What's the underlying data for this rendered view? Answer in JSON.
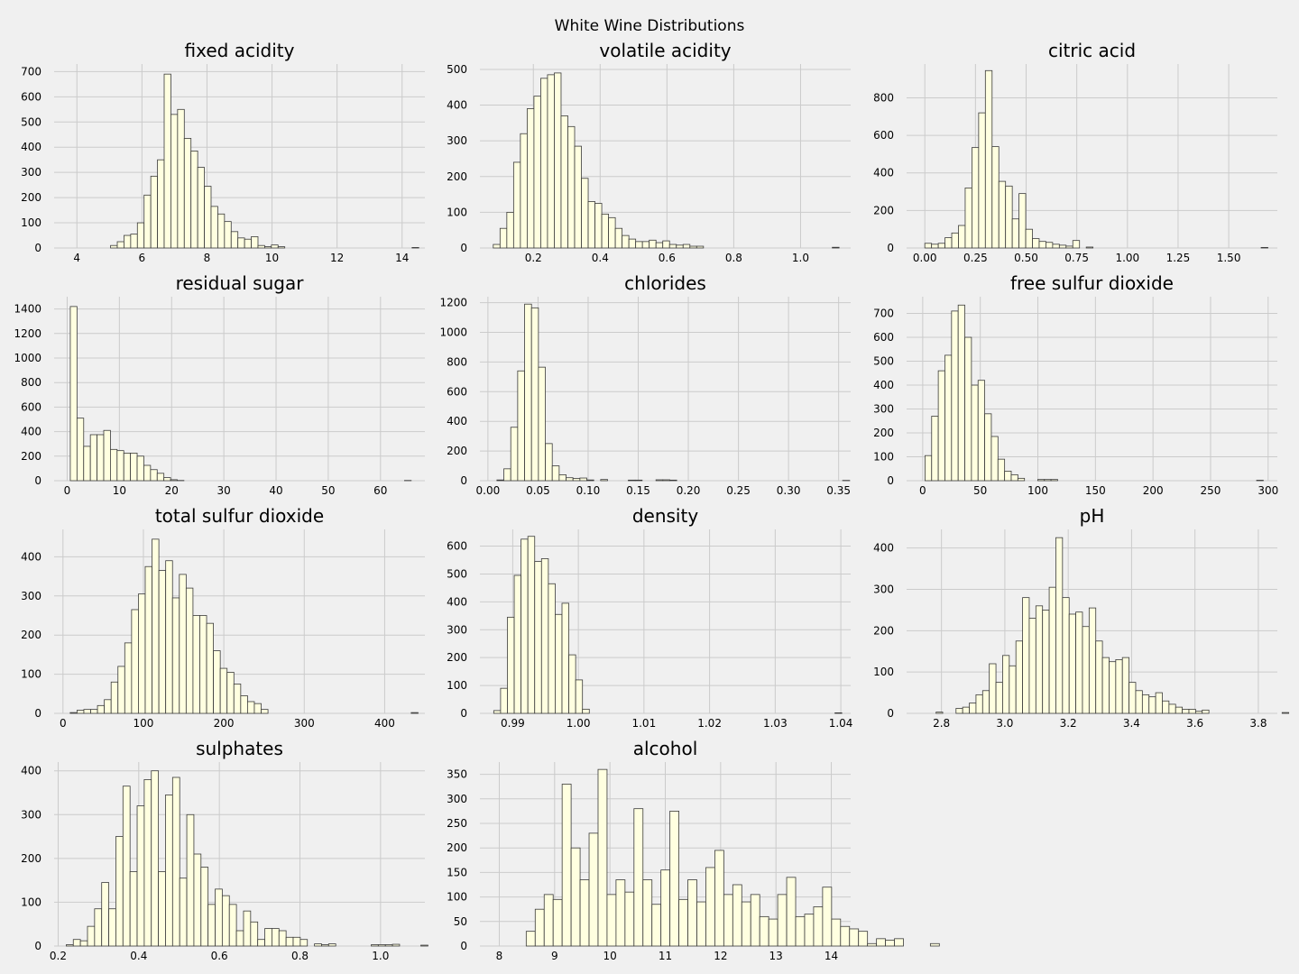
{
  "suptitle": "White Wine Distributions",
  "colors": {
    "background": "#f0f0f0",
    "bar_fill": "#ffffe0",
    "bar_edge": "#3a3a3a",
    "grid": "#cbcbcb"
  },
  "chart_data": [
    {
      "type": "bar",
      "title": "fixed acidity",
      "grid": true,
      "xlim": [
        3.3,
        14.7
      ],
      "ylim": [
        0,
        730
      ],
      "xticks": [
        4,
        6,
        8,
        10,
        12,
        14
      ],
      "xtick_labels": [
        "4",
        "6",
        "8",
        "10",
        "12",
        "14"
      ],
      "yticks": [
        0,
        100,
        200,
        300,
        400,
        500,
        600,
        700
      ],
      "ytick_labels": [
        "0",
        "100",
        "200",
        "300",
        "400",
        "500",
        "600",
        "700"
      ],
      "bin_start": 3.8,
      "bin_width": 0.206,
      "values": [
        0,
        0,
        0,
        0,
        0,
        0,
        10,
        25,
        50,
        55,
        100,
        210,
        285,
        350,
        690,
        530,
        550,
        435,
        385,
        320,
        245,
        165,
        135,
        105,
        65,
        40,
        35,
        45,
        10,
        5,
        12,
        5,
        0,
        0,
        0,
        0,
        0,
        0,
        0,
        0,
        0,
        0,
        0,
        0,
        0,
        0,
        0,
        0,
        0,
        0,
        0,
        2
      ]
    },
    {
      "type": "bar",
      "title": "volatile acidity",
      "grid": true,
      "xlim": [
        0.04,
        1.15
      ],
      "ylim": [
        0,
        515
      ],
      "xticks": [
        0.2,
        0.4,
        0.6,
        0.8,
        1.0
      ],
      "xtick_labels": [
        "0.2",
        "0.4",
        "0.6",
        "0.8",
        "1.0"
      ],
      "yticks": [
        0,
        100,
        200,
        300,
        400,
        500
      ],
      "ytick_labels": [
        "0",
        "100",
        "200",
        "300",
        "400",
        "500"
      ],
      "bin_start": 0.08,
      "bin_width": 0.0203,
      "values": [
        10,
        55,
        100,
        240,
        320,
        390,
        425,
        475,
        485,
        490,
        370,
        340,
        285,
        195,
        130,
        125,
        95,
        85,
        55,
        35,
        25,
        18,
        18,
        22,
        15,
        20,
        10,
        8,
        10,
        5,
        5,
        0,
        0,
        0,
        0,
        0,
        0,
        0,
        0,
        0,
        0,
        0,
        0,
        0,
        0,
        0,
        0,
        0,
        0,
        0,
        2
      ]
    },
    {
      "type": "bar",
      "title": "citric acid",
      "grid": true,
      "xlim": [
        -0.09,
        1.74
      ],
      "ylim": [
        0,
        980
      ],
      "xticks": [
        0.0,
        0.25,
        0.5,
        0.75,
        1.0,
        1.25,
        1.5
      ],
      "xtick_labels": [
        "0.00",
        "0.25",
        "0.50",
        "0.75",
        "1.00",
        "1.25",
        "1.50"
      ],
      "yticks": [
        0,
        200,
        400,
        600,
        800
      ],
      "ytick_labels": [
        "0",
        "200",
        "400",
        "600",
        "800"
      ],
      "bin_start": 0.0,
      "bin_width": 0.0332,
      "values": [
        25,
        20,
        25,
        55,
        80,
        120,
        320,
        535,
        720,
        945,
        540,
        355,
        330,
        155,
        290,
        100,
        50,
        35,
        30,
        20,
        15,
        10,
        40,
        0,
        5,
        0,
        0,
        0,
        0,
        0,
        0,
        0,
        0,
        0,
        0,
        0,
        0,
        0,
        0,
        0,
        0,
        0,
        0,
        0,
        0,
        0,
        0,
        0,
        0,
        0,
        3
      ]
    },
    {
      "type": "bar",
      "title": "residual sugar",
      "grid": true,
      "xlim": [
        -2.5,
        68.5
      ],
      "ylim": [
        0,
        1500
      ],
      "xticks": [
        0,
        10,
        20,
        30,
        40,
        50,
        60
      ],
      "xtick_labels": [
        "0",
        "10",
        "20",
        "30",
        "40",
        "50",
        "60"
      ],
      "yticks": [
        0,
        200,
        400,
        600,
        800,
        1000,
        1200,
        1400
      ],
      "ytick_labels": [
        "0",
        "200",
        "400",
        "600",
        "800",
        "1000",
        "1200",
        "1400"
      ],
      "bin_start": 0.6,
      "bin_width": 1.28,
      "values": [
        1420,
        510,
        280,
        375,
        375,
        410,
        255,
        245,
        225,
        225,
        200,
        125,
        90,
        60,
        25,
        8,
        2,
        0,
        0,
        0,
        0,
        0,
        0,
        0,
        0,
        0,
        0,
        0,
        0,
        0,
        0,
        0,
        0,
        0,
        0,
        0,
        0,
        0,
        0,
        0,
        0,
        0,
        0,
        0,
        0,
        0,
        0,
        0,
        0,
        0,
        2
      ]
    },
    {
      "type": "bar",
      "title": "chlorides",
      "grid": true,
      "xlim": [
        -0.008,
        0.362
      ],
      "ylim": [
        0,
        1240
      ],
      "xticks": [
        0.0,
        0.05,
        0.1,
        0.15,
        0.2,
        0.25,
        0.3,
        0.35
      ],
      "xtick_labels": [
        "0.00",
        "0.05",
        "0.10",
        "0.15",
        "0.20",
        "0.25",
        "0.30",
        "0.35"
      ],
      "yticks": [
        0,
        200,
        400,
        600,
        800,
        1000,
        1200
      ],
      "ytick_labels": [
        "0",
        "200",
        "400",
        "600",
        "800",
        "1000",
        "1200"
      ],
      "bin_start": 0.009,
      "bin_width": 0.0069,
      "values": [
        5,
        80,
        360,
        740,
        1190,
        1165,
        765,
        250,
        100,
        40,
        20,
        15,
        18,
        5,
        0,
        8,
        0,
        0,
        0,
        4,
        4,
        0,
        0,
        6,
        6,
        4,
        0,
        0,
        0,
        0,
        0,
        0,
        0,
        0,
        0,
        0,
        0,
        0,
        0,
        0,
        0,
        0,
        0,
        0,
        0,
        0,
        0,
        0,
        0,
        0,
        2
      ]
    },
    {
      "type": "bar",
      "title": "free sulfur dioxide",
      "grid": true,
      "xlim": [
        -14,
        308
      ],
      "ylim": [
        0,
        770
      ],
      "xticks": [
        0,
        50,
        100,
        150,
        200,
        250,
        300
      ],
      "xtick_labels": [
        "0",
        "50",
        "100",
        "150",
        "200",
        "250",
        "300"
      ],
      "yticks": [
        0,
        100,
        200,
        300,
        400,
        500,
        600,
        700
      ],
      "ytick_labels": [
        "0",
        "100",
        "200",
        "300",
        "400",
        "500",
        "600",
        "700"
      ],
      "bin_start": 2.0,
      "bin_width": 5.76,
      "values": [
        105,
        270,
        460,
        525,
        710,
        735,
        600,
        400,
        420,
        280,
        185,
        90,
        40,
        25,
        10,
        0,
        0,
        5,
        5,
        5,
        0,
        0,
        0,
        0,
        0,
        0,
        0,
        0,
        0,
        0,
        0,
        0,
        0,
        0,
        0,
        0,
        0,
        0,
        0,
        0,
        0,
        0,
        0,
        0,
        0,
        0,
        0,
        0,
        0,
        0,
        2
      ]
    },
    {
      "type": "bar",
      "title": "total sulfur dioxide",
      "grid": true,
      "xlim": [
        -11,
        450
      ],
      "ylim": [
        0,
        470
      ],
      "xticks": [
        0,
        100,
        200,
        300,
        400
      ],
      "xtick_labels": [
        "0",
        "100",
        "200",
        "300",
        "400"
      ],
      "yticks": [
        0,
        100,
        200,
        300,
        400
      ],
      "ytick_labels": [
        "0",
        "100",
        "200",
        "300",
        "400"
      ],
      "bin_start": 9.0,
      "bin_width": 8.48,
      "values": [
        2,
        8,
        10,
        10,
        20,
        35,
        80,
        120,
        180,
        265,
        305,
        375,
        445,
        365,
        390,
        295,
        355,
        320,
        250,
        250,
        230,
        160,
        115,
        105,
        75,
        45,
        30,
        25,
        10,
        0,
        0,
        0,
        0,
        0,
        0,
        0,
        0,
        0,
        0,
        0,
        0,
        0,
        0,
        0,
        0,
        0,
        0,
        0,
        0,
        0,
        2
      ]
    },
    {
      "type": "bar",
      "title": "density",
      "grid": true,
      "xlim": [
        0.985,
        1.0415
      ],
      "ylim": [
        0,
        660
      ],
      "xticks": [
        0.99,
        1.0,
        1.01,
        1.02,
        1.03,
        1.04
      ],
      "xtick_labels": [
        "0.99",
        "1.00",
        "1.01",
        "1.02",
        "1.03",
        "1.04"
      ],
      "yticks": [
        0,
        100,
        200,
        300,
        400,
        500,
        600
      ],
      "ytick_labels": [
        "0",
        "100",
        "200",
        "300",
        "400",
        "500",
        "600"
      ],
      "bin_start": 0.98711,
      "bin_width": 0.00104,
      "values": [
        10,
        90,
        345,
        495,
        625,
        635,
        545,
        555,
        465,
        355,
        395,
        210,
        120,
        15,
        0,
        0,
        0,
        0,
        0,
        0,
        0,
        0,
        0,
        0,
        0,
        0,
        0,
        0,
        0,
        0,
        0,
        0,
        0,
        0,
        0,
        0,
        0,
        0,
        0,
        0,
        0,
        0,
        0,
        0,
        0,
        0,
        0,
        0,
        0,
        0,
        2
      ]
    },
    {
      "type": "bar",
      "title": "pH",
      "grid": true,
      "xlim": [
        2.69,
        3.86
      ],
      "ylim": [
        0,
        445
      ],
      "xticks": [
        2.8,
        3.0,
        3.2,
        3.4,
        3.6,
        3.8
      ],
      "xtick_labels": [
        "2.8",
        "3.0",
        "3.2",
        "3.4",
        "3.6",
        "3.8"
      ],
      "yticks": [
        0,
        100,
        200,
        300,
        400
      ],
      "ytick_labels": [
        "0",
        "100",
        "200",
        "300",
        "400"
      ],
      "bin_start": 2.72,
      "bin_width": 0.021,
      "values": [
        0,
        0,
        0,
        3,
        0,
        0,
        12,
        15,
        25,
        45,
        55,
        120,
        75,
        140,
        115,
        175,
        280,
        230,
        260,
        250,
        305,
        425,
        280,
        240,
        245,
        210,
        255,
        175,
        135,
        125,
        130,
        135,
        75,
        55,
        45,
        40,
        50,
        30,
        22,
        15,
        10,
        10,
        5,
        8,
        0,
        0,
        0,
        0,
        0,
        0,
        0,
        0,
        0,
        0,
        0,
        2
      ]
    },
    {
      "type": "bar",
      "title": "sulphates",
      "grid": true,
      "xlim": [
        0.19,
        1.11
      ],
      "ylim": [
        0,
        420
      ],
      "xticks": [
        0.2,
        0.4,
        0.6,
        0.8,
        1.0
      ],
      "xtick_labels": [
        "0.2",
        "0.4",
        "0.6",
        "0.8",
        "1.0"
      ],
      "yticks": [
        0,
        100,
        200,
        300,
        400
      ],
      "ytick_labels": [
        "0",
        "100",
        "200",
        "300",
        "400"
      ],
      "bin_start": 0.22,
      "bin_width": 0.0176,
      "values": [
        3,
        15,
        12,
        45,
        85,
        145,
        85,
        250,
        365,
        170,
        320,
        380,
        400,
        170,
        345,
        385,
        155,
        300,
        210,
        180,
        95,
        130,
        115,
        95,
        35,
        80,
        55,
        15,
        40,
        40,
        35,
        20,
        20,
        15,
        0,
        5,
        3,
        5,
        0,
        0,
        0,
        0,
        0,
        3,
        3,
        3,
        4,
        0,
        0,
        0,
        2
      ]
    },
    {
      "type": "bar",
      "title": "alcohol",
      "grid": true,
      "xlim": [
        7.65,
        14.35
      ],
      "ylim": [
        0,
        375
      ],
      "xticks": [
        8,
        9,
        10,
        11,
        12,
        13,
        14
      ],
      "xtick_labels": [
        "8",
        "9",
        "10",
        "11",
        "12",
        "13",
        "14"
      ],
      "yticks": [
        0,
        50,
        100,
        150,
        200,
        250,
        300,
        350
      ],
      "ytick_labels": [
        "0",
        "50",
        "100",
        "150",
        "200",
        "250",
        "300",
        "350"
      ],
      "bin_start": 8.0,
      "bin_width": 0.1623,
      "values": [
        0,
        0,
        0,
        30,
        75,
        105,
        95,
        330,
        200,
        135,
        230,
        360,
        105,
        135,
        110,
        280,
        135,
        85,
        155,
        275,
        95,
        135,
        90,
        160,
        195,
        105,
        125,
        90,
        105,
        60,
        55,
        105,
        140,
        60,
        65,
        80,
        120,
        55,
        40,
        35,
        30,
        5,
        15,
        12,
        15,
        0,
        0,
        0,
        5,
        0
      ]
    }
  ]
}
